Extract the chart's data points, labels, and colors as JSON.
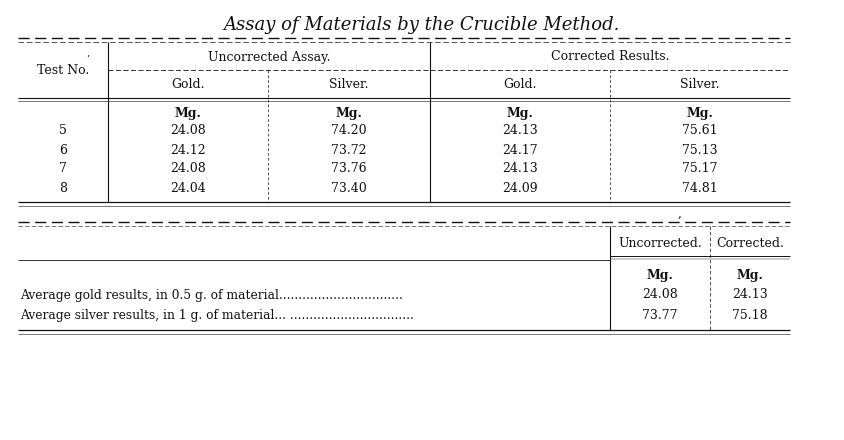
{
  "title": "Assay of Materials by the Crucible Method.",
  "bg_color": "#ffffff",
  "top_table": {
    "rows": [
      [
        "5",
        "24.08",
        "74.20",
        "24.13",
        "75.61"
      ],
      [
        "6",
        "24.12",
        "73.72",
        "24.17",
        "75.13"
      ],
      [
        "7",
        "24.08",
        "73.76",
        "24.13",
        "75.17"
      ],
      [
        "8",
        "24.04",
        "73.40",
        "24.09",
        "74.81"
      ]
    ]
  },
  "bottom_table": {
    "row_labels": [
      "Average gold results, in 0.5 g. of material................................",
      "Average silver results, in 1 g. of material... ................................"
    ],
    "uncorr": [
      "24.08",
      "73.77"
    ],
    "corr": [
      "24.13",
      "75.18"
    ]
  }
}
